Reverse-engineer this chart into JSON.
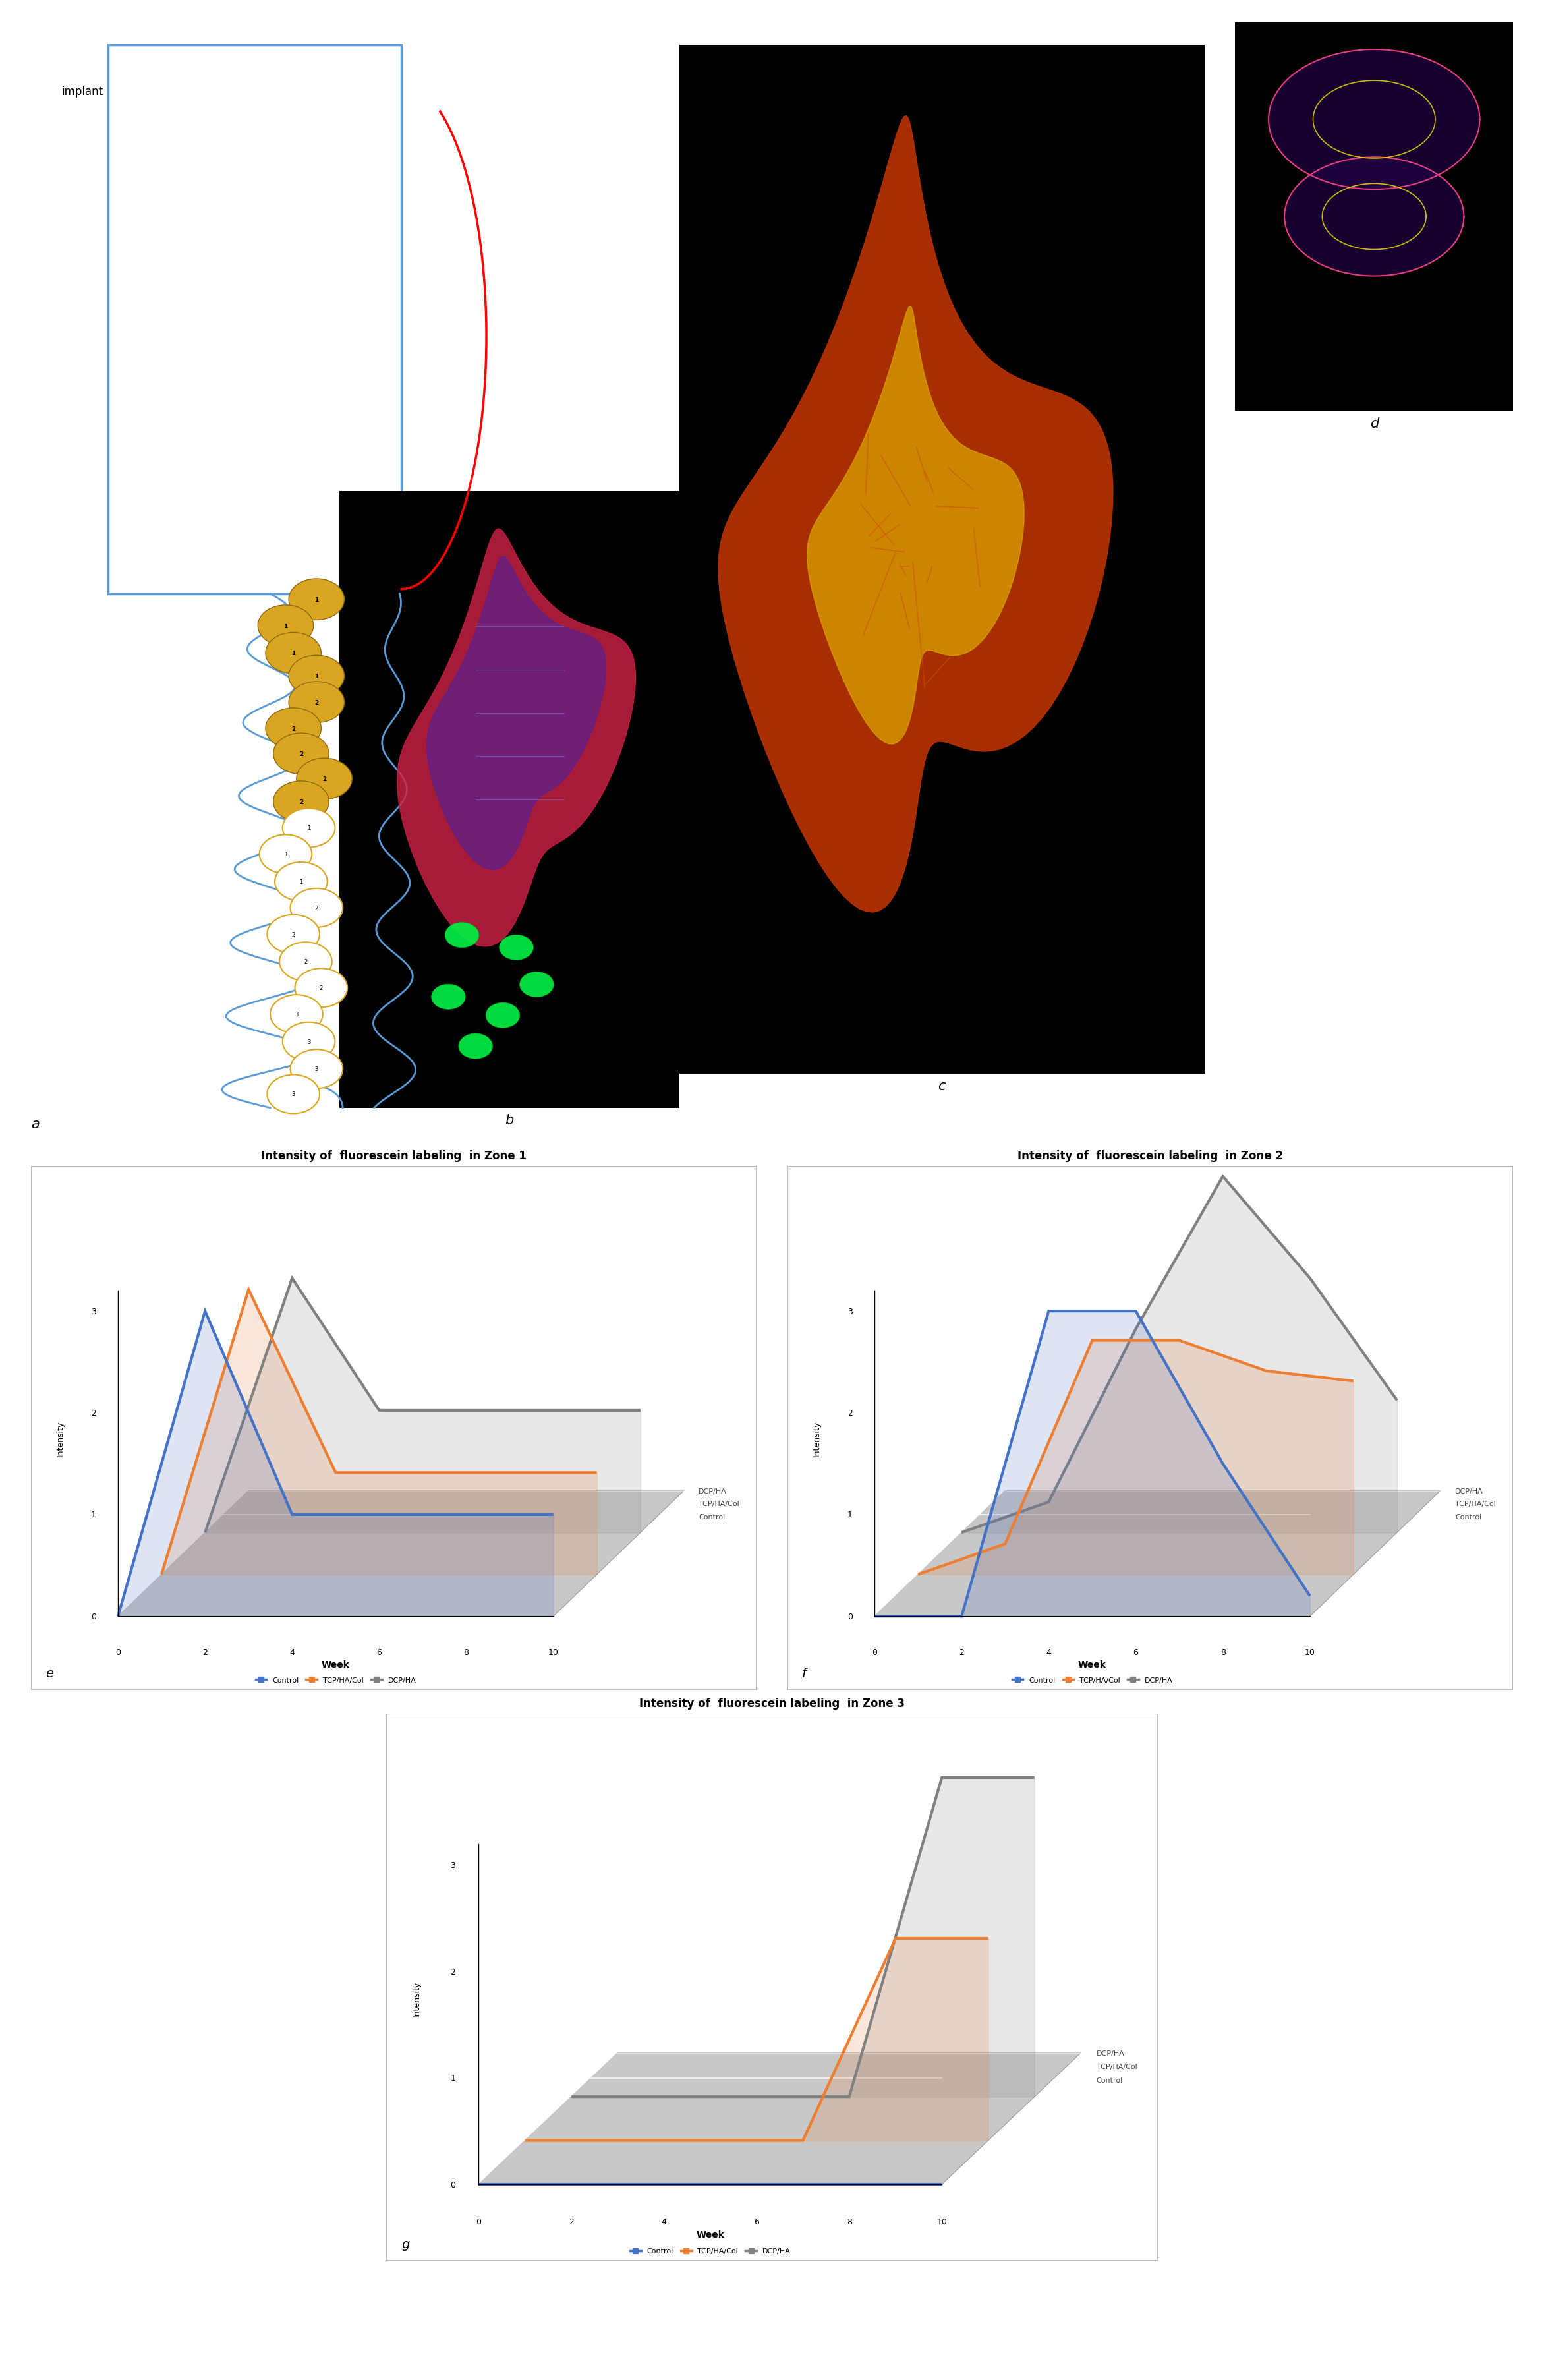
{
  "background_color": "#ffffff",
  "fig_width": 23.43,
  "fig_height": 36.12,
  "zone1": {
    "title": "Intensity of  fluorescein labeling  in Zone 1",
    "xlabel": "Week",
    "ylabel": "Intensity",
    "weeks": [
      0,
      2,
      4,
      6,
      8,
      10
    ],
    "control": [
      0,
      3.0,
      1.0,
      1.0,
      1.0,
      1.0
    ],
    "tcpha_col": [
      0,
      2.8,
      1.0,
      1.0,
      1.0,
      1.0
    ],
    "dcpha": [
      0,
      2.5,
      1.2,
      1.2,
      1.2,
      1.2
    ],
    "ylim": [
      0,
      3.5
    ]
  },
  "zone2": {
    "title": "Intensity of  fluorescein labeling  in Zone 2",
    "xlabel": "Week",
    "ylabel": "Intensity",
    "weeks": [
      0,
      2,
      4,
      6,
      8,
      10
    ],
    "control": [
      0,
      0.0,
      3.0,
      3.0,
      1.5,
      0.2
    ],
    "tcpha_col": [
      0,
      0.3,
      2.3,
      2.3,
      2.0,
      1.9
    ],
    "dcpha": [
      0,
      0.3,
      2.0,
      3.5,
      2.5,
      1.3
    ],
    "ylim": [
      0,
      3.5
    ]
  },
  "zone3": {
    "title": "Intensity of  fluorescein labeling  in Zone 3",
    "xlabel": "Week",
    "ylabel": "Intensity",
    "weeks": [
      0,
      2,
      4,
      6,
      8,
      10
    ],
    "control": [
      0,
      0.0,
      0.0,
      0.0,
      0.0,
      0.0
    ],
    "tcpha_col": [
      0,
      0.0,
      0.0,
      0.0,
      1.9,
      1.9
    ],
    "dcpha": [
      0,
      0.0,
      0.0,
      0.0,
      3.0,
      3.0
    ],
    "ylim": [
      0,
      3.5
    ]
  },
  "colors": {
    "control": "#4472C4",
    "tcpha_col": "#ED7D31",
    "dcpha": "#808080",
    "floor": "#C8C8C8",
    "floor_edge": "#999999",
    "chart_bg": "#FFFFFF",
    "chart_frame": "#D0D0D0"
  },
  "legend_labels_right": [
    "DCP/HA",
    "TCP/HA/Col",
    "Control"
  ],
  "legend_labels_bottom": [
    "Control",
    "TCP/HA/Col",
    "DCP/HA"
  ]
}
